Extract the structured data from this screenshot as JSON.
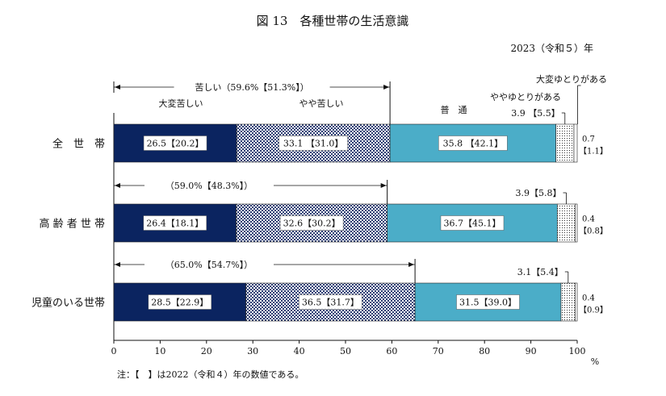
{
  "chart_data": {
    "type": "bar",
    "title": "図 13　各種世帯の生活意識",
    "year": "2023（令和５）年",
    "groups": [
      {
        "label": "全　世　帯",
        "values": [
          26.5,
          33.1,
          35.8,
          3.9,
          0.7
        ],
        "labels": [
          "26.5【20.2】",
          "33.1 【31.0】",
          "35.8 【42.1】",
          "3.9 【5.5】",
          "0.7\n【1.1】"
        ],
        "combined": 59.6,
        "bracket_label": "苦しい（59.6%【51.3%】）"
      },
      {
        "label": "高 齢 者 世 帯",
        "values": [
          26.4,
          32.6,
          36.7,
          3.9,
          0.4
        ],
        "labels": [
          "26.4【18.1】",
          "32.6【30.2】",
          "36.7【45.1】",
          "3.9【5.8】",
          "0.4\n【0.8】"
        ],
        "combined": 59.0,
        "bracket_label": "（59.0%【48.3%】）"
      },
      {
        "label": "児童のいる世帯",
        "values": [
          28.5,
          36.5,
          31.5,
          3.1,
          0.4
        ],
        "labels": [
          "28.5【22.9】",
          "36.5【31.7】",
          "31.5【39.0】",
          "3.1【5.4】",
          "0.4\n【0.9】"
        ],
        "combined": 65.0,
        "bracket_label": "（65.0%【54.7%】）"
      }
    ],
    "series": [
      {
        "name": "大変苦しい",
        "color": "#0b2460"
      },
      {
        "name": "やや苦しい",
        "color": "#3a4f86",
        "pattern": "checker"
      },
      {
        "name": "普　通",
        "color": "#4badc8"
      },
      {
        "name": "ややゆとりがある",
        "color": "#ffffff",
        "pattern": "dots"
      },
      {
        "name": "大変ゆとりがある",
        "color": "#ffffff"
      }
    ],
    "xlim": [
      0,
      100
    ],
    "xticks": [
      0,
      10,
      20,
      30,
      40,
      50,
      60,
      70,
      80,
      90,
      100
    ],
    "xunit": "%",
    "note": "注：【　】は2022（令和４）年の数値である。"
  }
}
